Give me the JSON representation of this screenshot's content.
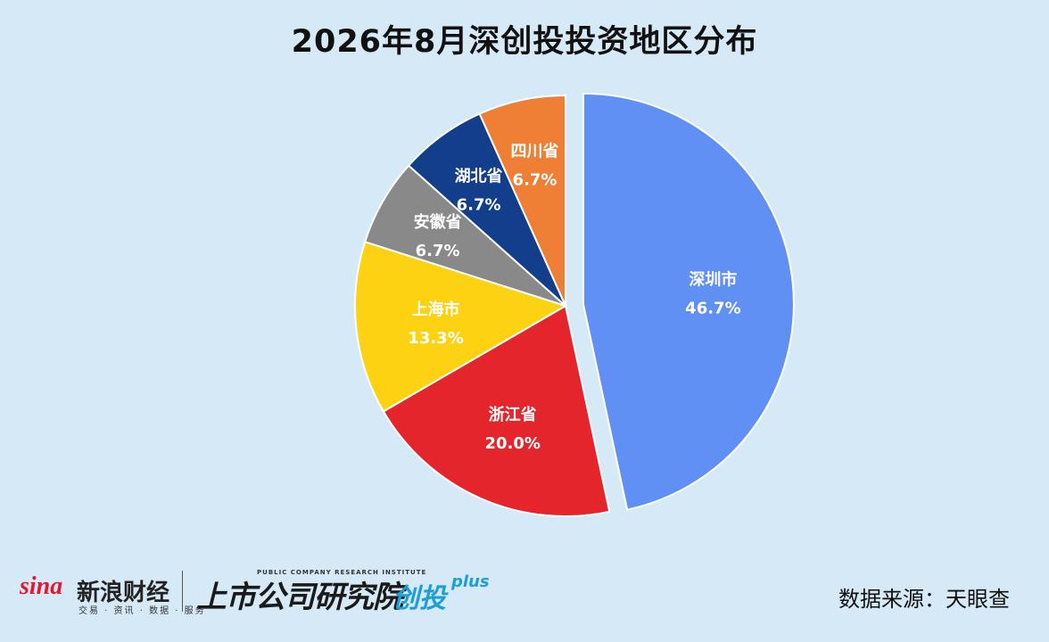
{
  "chart_data": {
    "type": "pie",
    "title": "2026年8月深创投投资地区分布",
    "slices": [
      {
        "label": "深圳市",
        "value": 46.7,
        "value_text": "46.7%",
        "color": "#6090f4",
        "exploded": true
      },
      {
        "label": "浙江省",
        "value": 20.0,
        "value_text": "20.0%",
        "color": "#e4252b"
      },
      {
        "label": "上海市",
        "value": 13.3,
        "value_text": "13.3%",
        "color": "#fdd213"
      },
      {
        "label": "安徽省",
        "value": 6.7,
        "value_text": "6.7%",
        "color": "#898989"
      },
      {
        "label": "湖北省",
        "value": 6.7,
        "value_text": "6.7%",
        "color": "#123e8c"
      },
      {
        "label": "四川省",
        "value": 6.7,
        "value_text": "6.7%",
        "color": "#ee7f34"
      }
    ],
    "start_angle_deg": 0,
    "direction": "clockwise",
    "legend": "none"
  },
  "footer": {
    "sina_mark": "sina",
    "sina_name": "新浪财经",
    "sina_sub": "交易 · 资讯 · 数据 · 服务",
    "institute_name": "上市公司研究院",
    "institute_en": "PUBLIC COMPANY RESEARCH INSTITUTE",
    "brand": "创投",
    "brand_plus": "plus",
    "source": "数据来源：天眼查"
  },
  "colors": {
    "background": "#d6e9f6",
    "slice_border": "#ffffff",
    "brand_blue": "#1f9ed6",
    "sina_red": "#e6162d"
  }
}
